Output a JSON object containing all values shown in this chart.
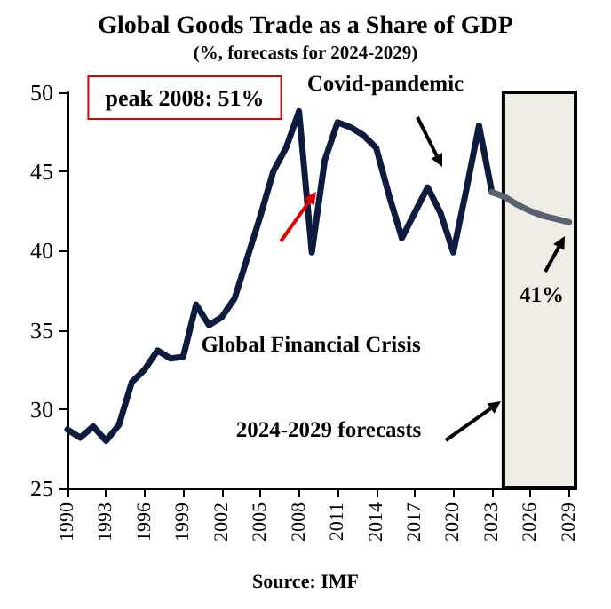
{
  "chart_data": {
    "type": "line",
    "title": "Global Goods Trade as a Share of GDP",
    "subtitle": "(%, forecasts for 2024-2029)",
    "series": [
      {
        "color": "#0d1b3e",
        "x": [
          1990,
          1991,
          1992,
          1993,
          1994,
          1995,
          1996,
          1997,
          1998,
          1999,
          2000,
          2001,
          2002,
          2003,
          2004,
          2005,
          2006,
          2007,
          2008,
          2009,
          2010,
          2011,
          2012,
          2013,
          2014,
          2015,
          2016,
          2017,
          2018,
          2019,
          2020,
          2021,
          2022,
          2023
        ],
        "values": [
          28.7,
          28.2,
          28.9,
          28.0,
          29.0,
          31.7,
          32.5,
          33.7,
          33.2,
          33.3,
          36.6,
          35.3,
          35.8,
          37.0,
          39.6,
          42.2,
          45.0,
          46.5,
          48.8,
          39.9,
          45.7,
          48.1,
          47.8,
          47.3,
          46.5,
          43.5,
          40.8,
          42.4,
          44.0,
          42.4,
          39.9,
          43.8,
          47.9,
          43.7
        ]
      },
      {
        "color": "#5a6270",
        "x": [
          2023,
          2024,
          2025,
          2026,
          2027,
          2028,
          2029
        ],
        "values": [
          43.7,
          43.4,
          42.9,
          42.5,
          42.2,
          42.0,
          41.8
        ]
      }
    ],
    "xlim": [
      1990,
      2029.5
    ],
    "xticks": [
      1990,
      1993,
      1996,
      1999,
      2002,
      2005,
      2008,
      2011,
      2014,
      2017,
      2020,
      2023,
      2026,
      2029
    ],
    "ylim": [
      25,
      50
    ],
    "yticks": [
      25,
      30,
      35,
      40,
      45,
      50
    ],
    "bands": [
      {
        "axis": "x",
        "from": 2023.9,
        "to": 2029.5,
        "color": "#f0ede6"
      }
    ],
    "annotations": [
      "peak 2008: 51%",
      "Covid-pandemic",
      "Global Financial Crisis",
      "41%",
      "2024-2029 forecasts",
      "Source: IMF"
    ],
    "grid": false,
    "marker": "none",
    "line_style": "solid"
  }
}
